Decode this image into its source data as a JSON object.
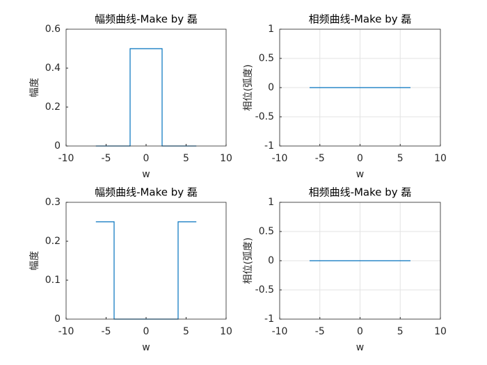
{
  "chart_data": [
    {
      "type": "line",
      "title": "幅频曲线-Make by 磊",
      "xlabel": "w",
      "ylabel": "幅度",
      "x": [
        -6.28,
        -2,
        -2,
        2,
        2,
        6.28
      ],
      "values": [
        0,
        0,
        0.5,
        0.5,
        0,
        0
      ],
      "color": "#0072bd",
      "xlim": [
        -10,
        10
      ],
      "xticks": [
        -10,
        -5,
        0,
        5,
        10
      ],
      "ylim": [
        0,
        0.6
      ],
      "yticks": [
        0,
        0.2,
        0.4,
        0.6
      ],
      "grid": false
    },
    {
      "type": "line",
      "title": "相频曲线-Make by 磊",
      "xlabel": "w",
      "ylabel": "相位(弧度)",
      "x": [
        -6.28,
        6.28
      ],
      "values": [
        0,
        0
      ],
      "color": "#0072bd",
      "xlim": [
        -10,
        10
      ],
      "xticks": [
        -10,
        -5,
        0,
        5,
        10
      ],
      "ylim": [
        -1,
        1
      ],
      "yticks": [
        -1,
        -0.5,
        0,
        0.5,
        1
      ],
      "grid": true
    },
    {
      "type": "line",
      "title": "幅频曲线-Make by 磊",
      "xlabel": "w",
      "ylabel": "幅度",
      "x": [
        -6.28,
        -4,
        -4,
        4,
        4,
        6.28
      ],
      "values": [
        0.25,
        0.25,
        0,
        0,
        0.25,
        0.25
      ],
      "color": "#0072bd",
      "xlim": [
        -10,
        10
      ],
      "xticks": [
        -10,
        -5,
        0,
        5,
        10
      ],
      "ylim": [
        0,
        0.3
      ],
      "yticks": [
        0,
        0.1,
        0.2,
        0.3
      ],
      "grid": false
    },
    {
      "type": "line",
      "title": "相频曲线-Make by 磊",
      "xlabel": "w",
      "ylabel": "相位(弧度)",
      "x": [
        -6.28,
        6.28
      ],
      "values": [
        0,
        0
      ],
      "color": "#0072bd",
      "xlim": [
        -10,
        10
      ],
      "xticks": [
        -10,
        -5,
        0,
        5,
        10
      ],
      "ylim": [
        -1,
        1
      ],
      "yticks": [
        -1,
        -0.5,
        0,
        0.5,
        1
      ],
      "grid": true
    }
  ]
}
